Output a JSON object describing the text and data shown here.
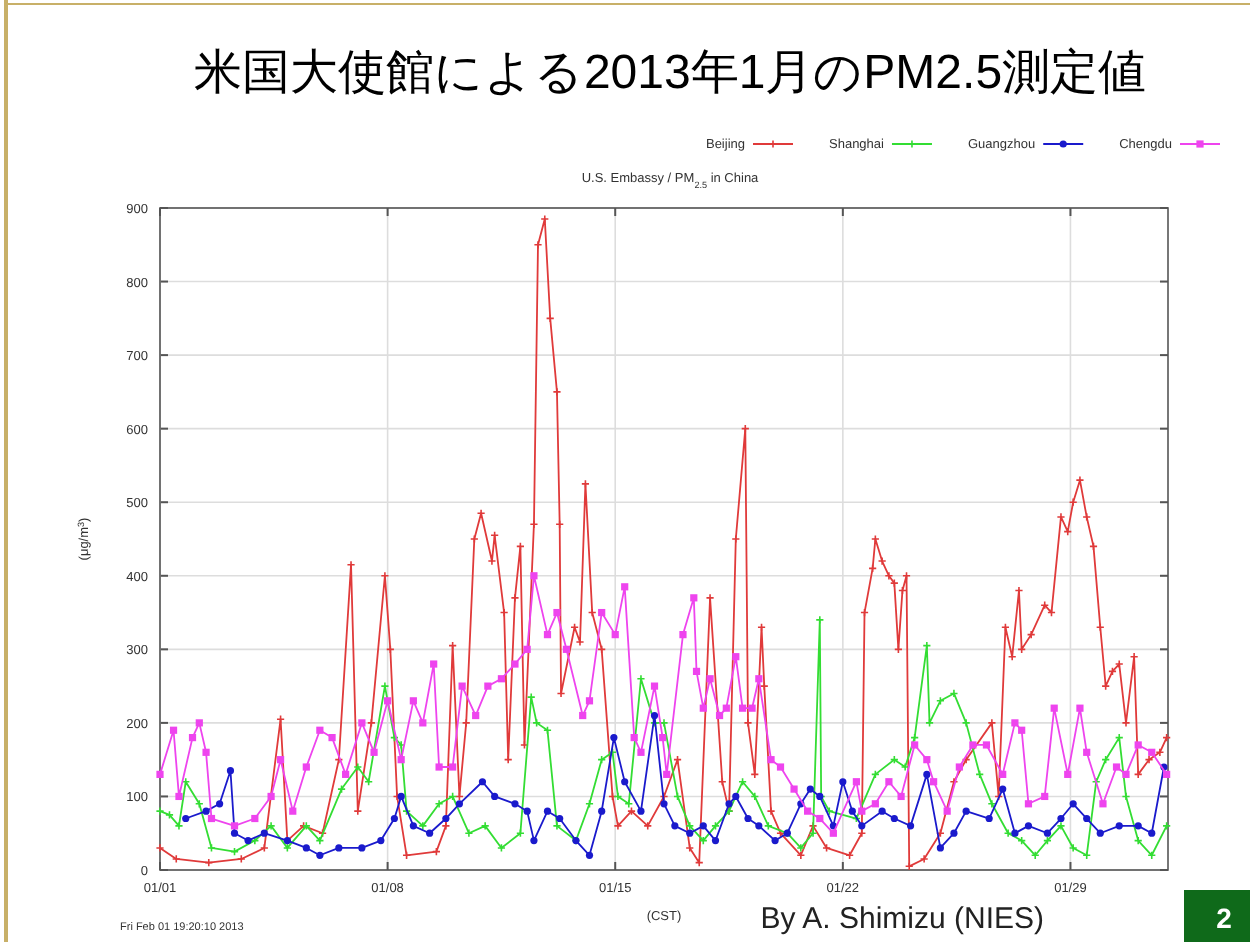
{
  "chart_data": {
    "type": "line",
    "title": "米国大使館による2013年1月のPM2.5測定値",
    "subtitle": "U.S. Embassy / PM$_{2.5}$ in China",
    "xlabel": "(CST)",
    "ylabel": "(μg/m$^{3}$)",
    "xlim": [
      "2013-01-01",
      "2013-02-01"
    ],
    "xticks": [
      {
        "value": "2013-01-01",
        "label": "01/01"
      },
      {
        "value": "2013-01-08",
        "label": "01/08"
      },
      {
        "value": "2013-01-15",
        "label": "01/15"
      },
      {
        "value": "2013-01-22",
        "label": "01/22"
      },
      {
        "value": "2013-01-29",
        "label": "01/29"
      }
    ],
    "ylim": [
      0,
      900
    ],
    "yticks": [
      0,
      100,
      200,
      300,
      400,
      500,
      600,
      700,
      800,
      900
    ],
    "grid": true,
    "legend": "top right",
    "line_style": "solid",
    "annotations": [
      "Fri Feb 01 19:20:10 2013",
      "By A. Shimizu (NIES)",
      "2"
    ],
    "series": [
      {
        "name": "Beijing",
        "color": "#e03a3a",
        "marker": "cross",
        "x": [
          "2013-01-01T00:00",
          "2013-01-01T12:00",
          "2013-01-02T12:00",
          "2013-01-03T12:00",
          "2013-01-04T05:00",
          "2013-01-04T17:00",
          "2013-01-04T22:00",
          "2013-01-05T10:00",
          "2013-01-06T00:00",
          "2013-01-06T12:00",
          "2013-01-06T21:00",
          "2013-01-07T02:00",
          "2013-01-07T12:00",
          "2013-01-07T22:00",
          "2013-01-08T02:00",
          "2013-01-08T07:00",
          "2013-01-08T14:00",
          "2013-01-09T12:00",
          "2013-01-09T19:00",
          "2013-01-10T00:00",
          "2013-01-10T05:00",
          "2013-01-10T10:00",
          "2013-01-10T16:00",
          "2013-01-10T21:00",
          "2013-01-11T05:00",
          "2013-01-11T07:00",
          "2013-01-11T14:00",
          "2013-01-11T17:00",
          "2013-01-11T22:00",
          "2013-01-12T02:00",
          "2013-01-12T05:00",
          "2013-01-12T12:00",
          "2013-01-12T15:00",
          "2013-01-12T20:00",
          "2013-01-13T00:00",
          "2013-01-13T05:00",
          "2013-01-13T07:00",
          "2013-01-13T08:00",
          "2013-01-13T18:00",
          "2013-01-13T22:00",
          "2013-01-14T02:00",
          "2013-01-14T07:00",
          "2013-01-14T14:00",
          "2013-01-14T22:00",
          "2013-01-15T02:00",
          "2013-01-15T12:00",
          "2013-01-16T00:00",
          "2013-01-16T12:00",
          "2013-01-16T22:00",
          "2013-01-17T07:00",
          "2013-01-17T14:00",
          "2013-01-17T22:00",
          "2013-01-18T07:00",
          "2013-01-18T12:00",
          "2013-01-18T17:00",
          "2013-01-19T00:00",
          "2013-01-19T02:00",
          "2013-01-19T07:00",
          "2013-01-19T12:00",
          "2013-01-19T14:00",
          "2013-01-19T19:00",
          "2013-01-20T02:00",
          "2013-01-20T17:00",
          "2013-01-21T02:00",
          "2013-01-21T12:00",
          "2013-01-22T05:00",
          "2013-01-22T14:00",
          "2013-01-22T16:00",
          "2013-01-22T22:00",
          "2013-01-23T00:00",
          "2013-01-23T05:00",
          "2013-01-23T10:00",
          "2013-01-23T14:00",
          "2013-01-23T17:00",
          "2013-01-23T20:00",
          "2013-01-23T23:00",
          "2013-01-24T01:00",
          "2013-01-24T12:00",
          "2013-01-25T00:00",
          "2013-01-25T10:00",
          "2013-01-25T19:00",
          "2013-01-26T14:00",
          "2013-01-26T19:00",
          "2013-01-27T00:00",
          "2013-01-27T05:00",
          "2013-01-27T10:00",
          "2013-01-27T12:00",
          "2013-01-27T19:00",
          "2013-01-28T05:00",
          "2013-01-28T10:00",
          "2013-01-28T17:00",
          "2013-01-28T22:00",
          "2013-01-29T02:00",
          "2013-01-29T07:00",
          "2013-01-29T12:00",
          "2013-01-29T17:00",
          "2013-01-29T22:00",
          "2013-01-30T02:00",
          "2013-01-30T07:00",
          "2013-01-30T12:00",
          "2013-01-30T17:00",
          "2013-01-30T23:00",
          "2013-01-31T02:00",
          "2013-01-31T10:00",
          "2013-01-31T18:00",
          "2013-01-31T23:00"
        ],
        "values": [
          30,
          15,
          10,
          15,
          30,
          205,
          40,
          60,
          50,
          150,
          415,
          80,
          200,
          400,
          300,
          100,
          20,
          25,
          60,
          305,
          100,
          200,
          450,
          485,
          420,
          455,
          350,
          150,
          370,
          440,
          170,
          470,
          850,
          885,
          750,
          650,
          470,
          240,
          330,
          310,
          525,
          350,
          300,
          100,
          60,
          80,
          60,
          100,
          150,
          30,
          10,
          370,
          120,
          80,
          450,
          600,
          200,
          130,
          330,
          250,
          80,
          50,
          20,
          60,
          30,
          20,
          50,
          350,
          410,
          450,
          420,
          400,
          390,
          300,
          380,
          400,
          5,
          15,
          50,
          120,
          150,
          200,
          100,
          330,
          290,
          380,
          300,
          320,
          360,
          350,
          480,
          460,
          500,
          530,
          480,
          440,
          330,
          250,
          270,
          280,
          200,
          290,
          130,
          150,
          160,
          180
        ]
      },
      {
        "name": "Shanghai",
        "color": "#33dd33",
        "marker": "cross",
        "x": [
          "2013-01-01T00:00",
          "2013-01-01T07:00",
          "2013-01-01T14:00",
          "2013-01-01T19:00",
          "2013-01-02T05:00",
          "2013-01-02T14:00",
          "2013-01-03T07:00",
          "2013-01-03T22:00",
          "2013-01-04T10:00",
          "2013-01-04T22:00",
          "2013-01-05T12:00",
          "2013-01-05T22:00",
          "2013-01-06T14:00",
          "2013-01-07T02:00",
          "2013-01-07T10:00",
          "2013-01-07T22:00",
          "2013-01-08T05:00",
          "2013-01-08T10:00",
          "2013-01-08T14:00",
          "2013-01-09T02:00",
          "2013-01-09T14:00",
          "2013-01-10T00:00",
          "2013-01-10T12:00",
          "2013-01-11T00:00",
          "2013-01-11T12:00",
          "2013-01-12T02:00",
          "2013-01-12T10:00",
          "2013-01-12T14:00",
          "2013-01-12T22:00",
          "2013-01-13T05:00",
          "2013-01-13T19:00",
          "2013-01-14T05:00",
          "2013-01-14T14:00",
          "2013-01-14T22:00",
          "2013-01-15T02:00",
          "2013-01-15T10:00",
          "2013-01-15T19:00",
          "2013-01-16T05:00",
          "2013-01-16T12:00",
          "2013-01-16T22:00",
          "2013-01-17T07:00",
          "2013-01-17T17:00",
          "2013-01-18T02:00",
          "2013-01-18T12:00",
          "2013-01-18T22:00",
          "2013-01-19T07:00",
          "2013-01-19T17:00",
          "2013-01-20T07:00",
          "2013-01-20T17:00",
          "2013-01-21T02:00",
          "2013-01-21T07:00",
          "2013-01-21T08:00",
          "2013-01-21T14:00",
          "2013-01-22T10:00",
          "2013-01-23T00:00",
          "2013-01-23T14:00",
          "2013-01-23T22:00",
          "2013-01-24T05:00",
          "2013-01-24T14:00",
          "2013-01-24T16:00",
          "2013-01-25T00:00",
          "2013-01-25T10:00",
          "2013-01-25T19:00",
          "2013-01-26T05:00",
          "2013-01-26T14:00",
          "2013-01-27T02:00",
          "2013-01-27T12:00",
          "2013-01-27T22:00",
          "2013-01-28T07:00",
          "2013-01-28T17:00",
          "2013-01-29T02:00",
          "2013-01-29T12:00",
          "2013-01-29T19:00",
          "2013-01-30T02:00",
          "2013-01-30T12:00",
          "2013-01-30T17:00",
          "2013-01-31T02:00",
          "2013-01-31T12:00",
          "2013-01-31T23:00"
        ],
        "values": [
          80,
          75,
          60,
          120,
          90,
          30,
          25,
          40,
          60,
          30,
          60,
          40,
          110,
          140,
          120,
          250,
          180,
          170,
          80,
          60,
          90,
          100,
          50,
          60,
          30,
          50,
          235,
          200,
          190,
          60,
          40,
          90,
          150,
          160,
          100,
          90,
          260,
          200,
          200,
          100,
          60,
          40,
          60,
          80,
          120,
          100,
          60,
          50,
          30,
          50,
          340,
          100,
          80,
          70,
          130,
          150,
          140,
          180,
          305,
          200,
          230,
          240,
          200,
          130,
          90,
          50,
          40,
          20,
          40,
          60,
          30,
          20,
          120,
          150,
          180,
          100,
          40,
          20,
          60
        ]
      },
      {
        "name": "Guangzhou",
        "color": "#1a1acc",
        "marker": "circle",
        "x": [
          "2013-01-01T19:00",
          "2013-01-02T10:00",
          "2013-01-02T20:00",
          "2013-01-03T04:00",
          "2013-01-03T07:00",
          "2013-01-03T17:00",
          "2013-01-04T05:00",
          "2013-01-04T22:00",
          "2013-01-05T12:00",
          "2013-01-05T22:00",
          "2013-01-06T12:00",
          "2013-01-07T05:00",
          "2013-01-07T19:00",
          "2013-01-08T05:00",
          "2013-01-08T10:00",
          "2013-01-08T19:00",
          "2013-01-09T07:00",
          "2013-01-09T19:00",
          "2013-01-10T05:00",
          "2013-01-10T22:00",
          "2013-01-11T07:00",
          "2013-01-11T22:00",
          "2013-01-12T07:00",
          "2013-01-12T12:00",
          "2013-01-12T22:00",
          "2013-01-13T07:00",
          "2013-01-13T19:00",
          "2013-01-14T05:00",
          "2013-01-14T14:00",
          "2013-01-14T23:00",
          "2013-01-15T07:00",
          "2013-01-15T19:00",
          "2013-01-16T05:00",
          "2013-01-16T12:00",
          "2013-01-16T20:00",
          "2013-01-17T07:00",
          "2013-01-17T17:00",
          "2013-01-18T02:00",
          "2013-01-18T12:00",
          "2013-01-18T17:00",
          "2013-01-19T02:00",
          "2013-01-19T10:00",
          "2013-01-19T22:00",
          "2013-01-20T07:00",
          "2013-01-20T17:00",
          "2013-01-21T00:00",
          "2013-01-21T07:00",
          "2013-01-21T17:00",
          "2013-01-22T00:00",
          "2013-01-22T07:00",
          "2013-01-22T14:00",
          "2013-01-23T05:00",
          "2013-01-23T14:00",
          "2013-01-24T02:00",
          "2013-01-24T14:00",
          "2013-01-25T00:00",
          "2013-01-25T10:00",
          "2013-01-25T19:00",
          "2013-01-26T12:00",
          "2013-01-26T22:00",
          "2013-01-27T07:00",
          "2013-01-27T17:00",
          "2013-01-28T07:00",
          "2013-01-28T17:00",
          "2013-01-29T02:00",
          "2013-01-29T12:00",
          "2013-01-29T22:00",
          "2013-01-30T12:00",
          "2013-01-31T02:00",
          "2013-01-31T12:00",
          "2013-01-31T21:00"
        ],
        "values": [
          70,
          80,
          90,
          135,
          50,
          40,
          50,
          40,
          30,
          20,
          30,
          30,
          40,
          70,
          100,
          60,
          50,
          70,
          90,
          120,
          100,
          90,
          80,
          40,
          80,
          70,
          40,
          20,
          80,
          180,
          120,
          80,
          210,
          90,
          60,
          50,
          60,
          40,
          90,
          100,
          70,
          60,
          40,
          50,
          90,
          110,
          100,
          60,
          120,
          80,
          60,
          80,
          70,
          60,
          130,
          30,
          50,
          80,
          70,
          110,
          50,
          60,
          50,
          70,
          90,
          70,
          50,
          60,
          60,
          50,
          140
        ]
      },
      {
        "name": "Chengdu",
        "color": "#ee44ee",
        "marker": "square",
        "x": [
          "2013-01-01T00:00",
          "2013-01-01T10:00",
          "2013-01-01T14:00",
          "2013-01-02T00:00",
          "2013-01-02T05:00",
          "2013-01-02T10:00",
          "2013-01-02T14:00",
          "2013-01-03T07:00",
          "2013-01-03T22:00",
          "2013-01-04T10:00",
          "2013-01-04T17:00",
          "2013-01-05T02:00",
          "2013-01-05T12:00",
          "2013-01-05T22:00",
          "2013-01-06T07:00",
          "2013-01-06T17:00",
          "2013-01-07T05:00",
          "2013-01-07T14:00",
          "2013-01-08T00:00",
          "2013-01-08T10:00",
          "2013-01-08T19:00",
          "2013-01-09T02:00",
          "2013-01-09T10:00",
          "2013-01-09T14:00",
          "2013-01-10T00:00",
          "2013-01-10T07:00",
          "2013-01-10T17:00",
          "2013-01-11T02:00",
          "2013-01-11T12:00",
          "2013-01-11T22:00",
          "2013-01-12T07:00",
          "2013-01-12T12:00",
          "2013-01-12T22:00",
          "2013-01-13T05:00",
          "2013-01-13T12:00",
          "2013-01-14T00:00",
          "2013-01-14T05:00",
          "2013-01-14T14:00",
          "2013-01-15T00:00",
          "2013-01-15T07:00",
          "2013-01-15T14:00",
          "2013-01-15T19:00",
          "2013-01-16T05:00",
          "2013-01-16T11:00",
          "2013-01-16T14:00",
          "2013-01-17T02:00",
          "2013-01-17T10:00",
          "2013-01-17T12:00",
          "2013-01-17T17:00",
          "2013-01-17T22:00",
          "2013-01-18T05:00",
          "2013-01-18T10:00",
          "2013-01-18T17:00",
          "2013-01-18T22:00",
          "2013-01-19T05:00",
          "2013-01-19T10:00",
          "2013-01-19T19:00",
          "2013-01-20T02:00",
          "2013-01-20T12:00",
          "2013-01-20T22:00",
          "2013-01-21T07:00",
          "2013-01-21T17:00",
          "2013-01-22T10:00",
          "2013-01-22T14:00",
          "2013-01-23T00:00",
          "2013-01-23T10:00",
          "2013-01-23T19:00",
          "2013-01-24T05:00",
          "2013-01-24T14:00",
          "2013-01-24T19:00",
          "2013-01-25T05:00",
          "2013-01-25T14:00",
          "2013-01-26T00:00",
          "2013-01-26T10:00",
          "2013-01-26T22:00",
          "2013-01-27T07:00",
          "2013-01-27T12:00",
          "2013-01-27T17:00",
          "2013-01-28T05:00",
          "2013-01-28T12:00",
          "2013-01-28T22:00",
          "2013-01-29T07:00",
          "2013-01-29T12:00",
          "2013-01-30T00:00",
          "2013-01-30T10:00",
          "2013-01-30T17:00",
          "2013-01-31T02:00",
          "2013-01-31T12:00",
          "2013-01-31T23:00"
        ],
        "values": [
          130,
          190,
          100,
          180,
          200,
          160,
          70,
          60,
          70,
          100,
          150,
          80,
          140,
          190,
          180,
          130,
          200,
          160,
          230,
          150,
          230,
          200,
          280,
          140,
          140,
          250,
          210,
          250,
          260,
          280,
          300,
          400,
          320,
          350,
          300,
          210,
          230,
          350,
          320,
          385,
          180,
          160,
          250,
          180,
          130,
          320,
          370,
          270,
          220,
          260,
          210,
          220,
          290,
          220,
          220,
          260,
          150,
          140,
          110,
          80,
          70,
          50,
          120,
          80,
          90,
          120,
          100,
          170,
          150,
          120,
          80,
          140,
          170,
          170,
          130,
          200,
          190,
          90,
          100,
          220,
          130,
          220,
          160,
          90,
          140,
          130,
          170,
          160,
          130
        ]
      }
    ]
  }
}
